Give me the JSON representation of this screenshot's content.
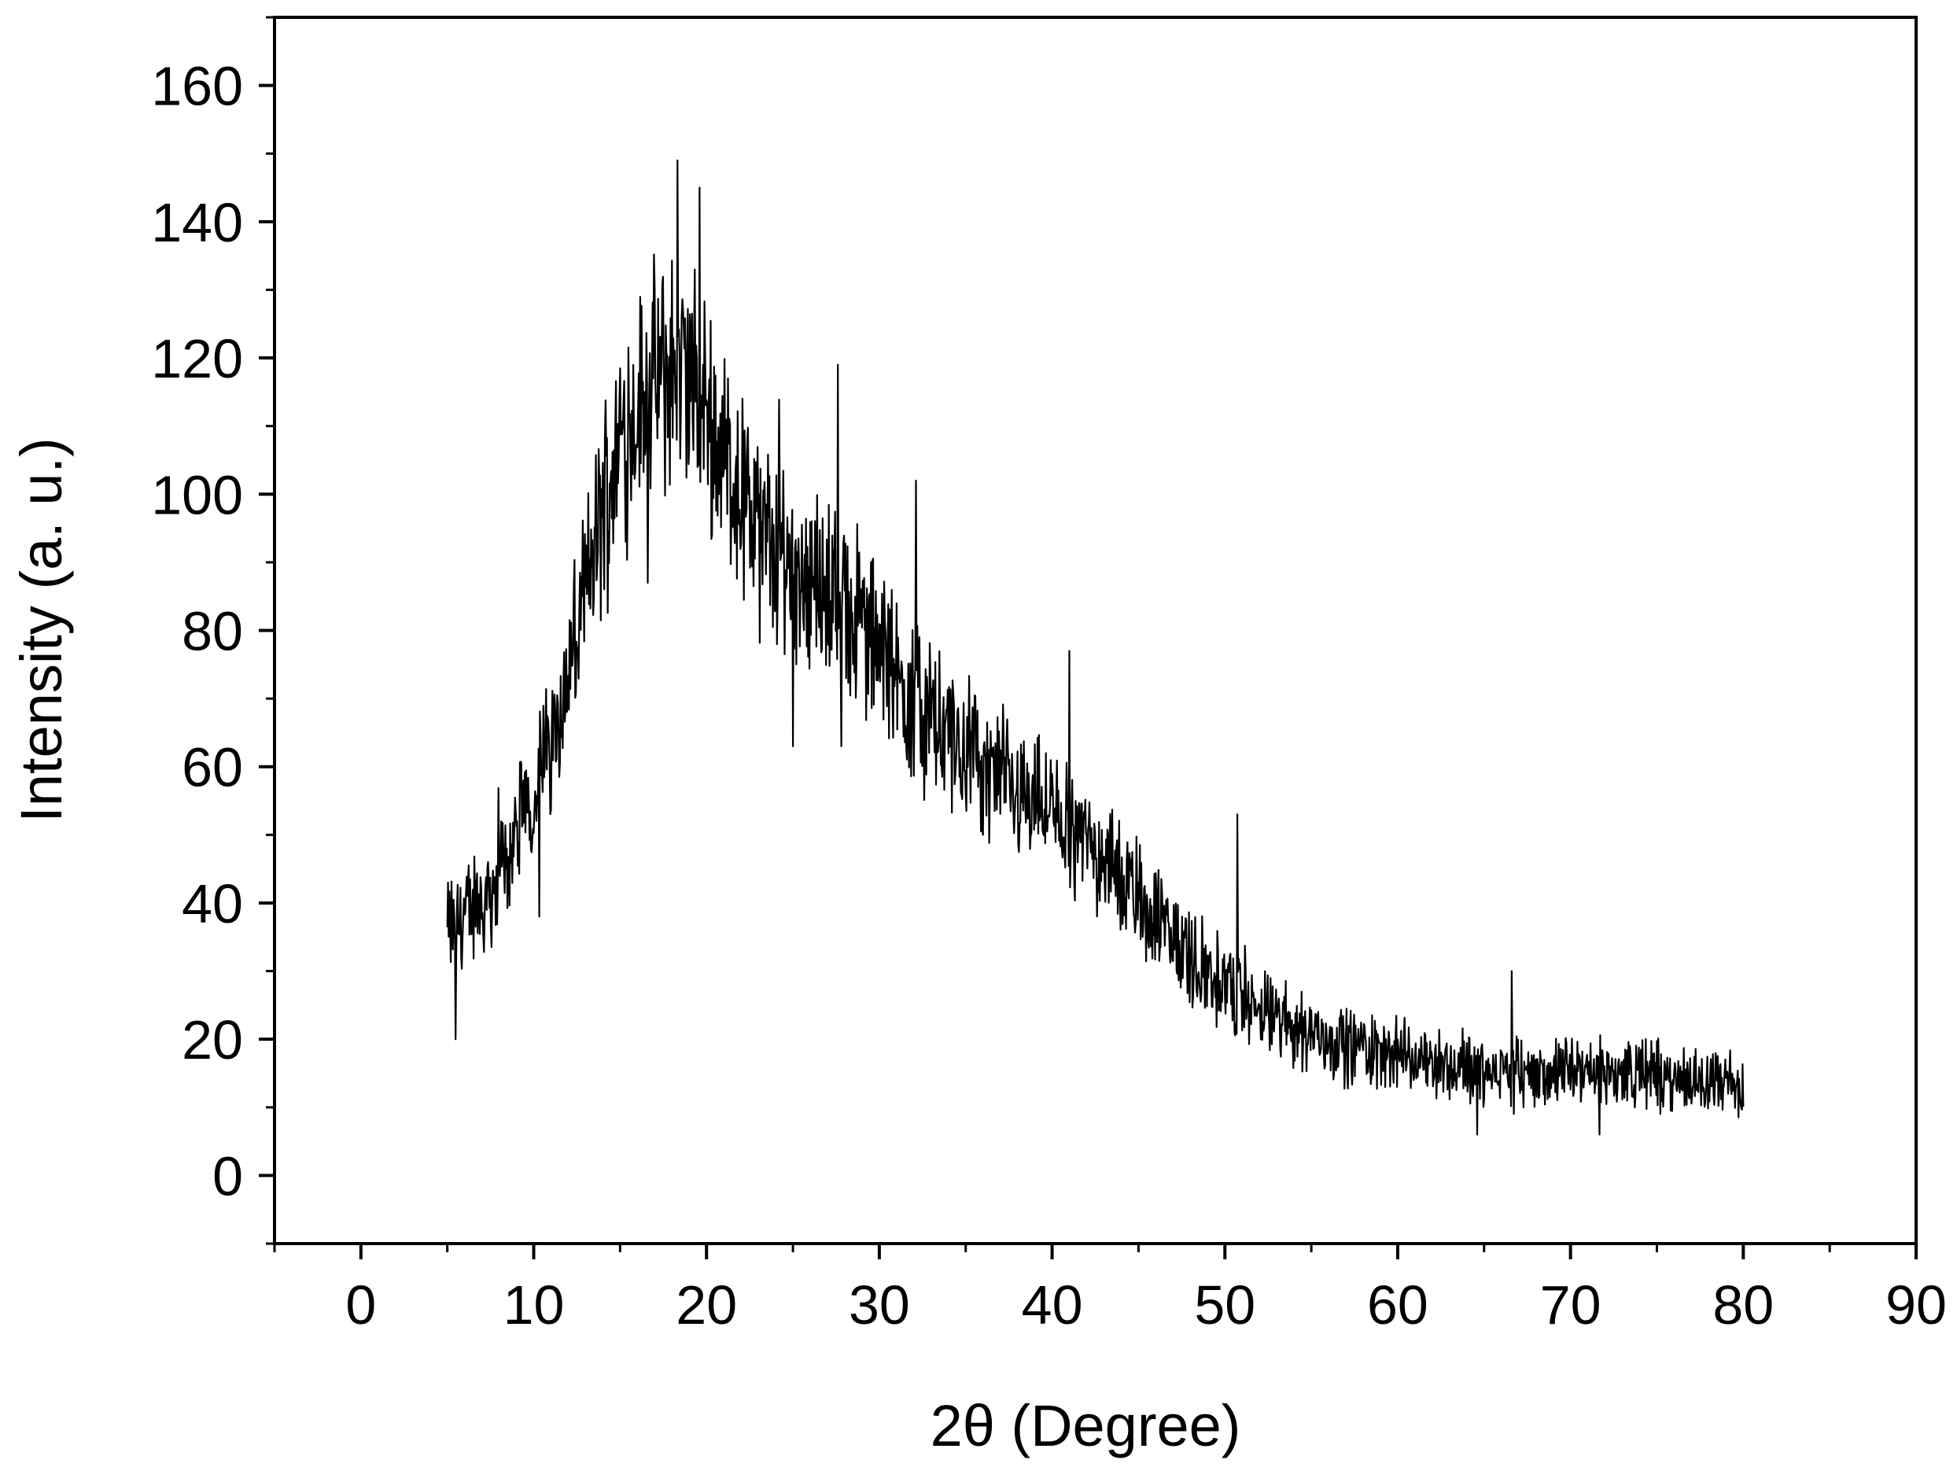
{
  "chart_data": {
    "type": "line",
    "title": "",
    "xlabel": "2θ (Degree)",
    "ylabel": "Intensity (a. u.)",
    "xlim": [
      -5,
      90
    ],
    "ylim": [
      -10,
      170
    ],
    "x_ticks": [
      0,
      10,
      20,
      30,
      40,
      50,
      60,
      70,
      80,
      90
    ],
    "y_ticks": [
      0,
      20,
      40,
      60,
      80,
      100,
      120,
      140,
      160
    ],
    "grid": false,
    "series": [
      {
        "color": "#000000",
        "x": [
          5,
          6,
          7,
          8,
          9,
          10,
          11,
          12,
          13,
          14,
          15,
          16,
          17,
          18,
          19,
          20,
          21,
          22,
          23,
          24,
          25,
          26,
          27,
          28,
          29,
          30,
          31,
          32,
          33,
          34,
          35,
          36,
          37,
          38,
          39,
          40,
          41,
          42,
          43,
          44,
          45,
          46,
          47,
          48,
          49,
          50,
          51,
          52,
          53,
          54,
          55,
          56,
          57,
          58,
          59,
          60,
          61,
          62,
          63,
          64,
          65,
          66,
          67,
          68,
          69,
          70,
          71,
          72,
          73,
          74,
          75,
          76,
          77,
          78,
          79,
          80
        ],
        "y": [
          36,
          38,
          40,
          44,
          50,
          56,
          64,
          73,
          85,
          98,
          108,
          113,
          116,
          118,
          117,
          112,
          106,
          100,
          95,
          92,
          90,
          88,
          86,
          84,
          81,
          77,
          73,
          70,
          67,
          64,
          62,
          60,
          58,
          57,
          55,
          53,
          51,
          49,
          47,
          44,
          41,
          38,
          35,
          32,
          30,
          28,
          26,
          24,
          23,
          22,
          21,
          20,
          19,
          19,
          18,
          18,
          17,
          17,
          16,
          16,
          15,
          15,
          15,
          15,
          15,
          15,
          15,
          15,
          15,
          15,
          15,
          14,
          14,
          14,
          14,
          12
        ],
        "annotations": [
          {
            "x": 5.5,
            "y": 20
          },
          {
            "x": 10.3,
            "y": 38
          },
          {
            "x": 16.6,
            "y": 87
          },
          {
            "x": 18.3,
            "y": 149
          },
          {
            "x": 19.6,
            "y": 145
          },
          {
            "x": 25.0,
            "y": 63
          },
          {
            "x": 27.6,
            "y": 119
          },
          {
            "x": 27.8,
            "y": 63
          },
          {
            "x": 32.1,
            "y": 102
          },
          {
            "x": 41.0,
            "y": 77
          },
          {
            "x": 50.7,
            "y": 53
          },
          {
            "x": 64.6,
            "y": 6
          },
          {
            "x": 66.6,
            "y": 30
          },
          {
            "x": 71.7,
            "y": 6
          }
        ]
      }
    ]
  }
}
